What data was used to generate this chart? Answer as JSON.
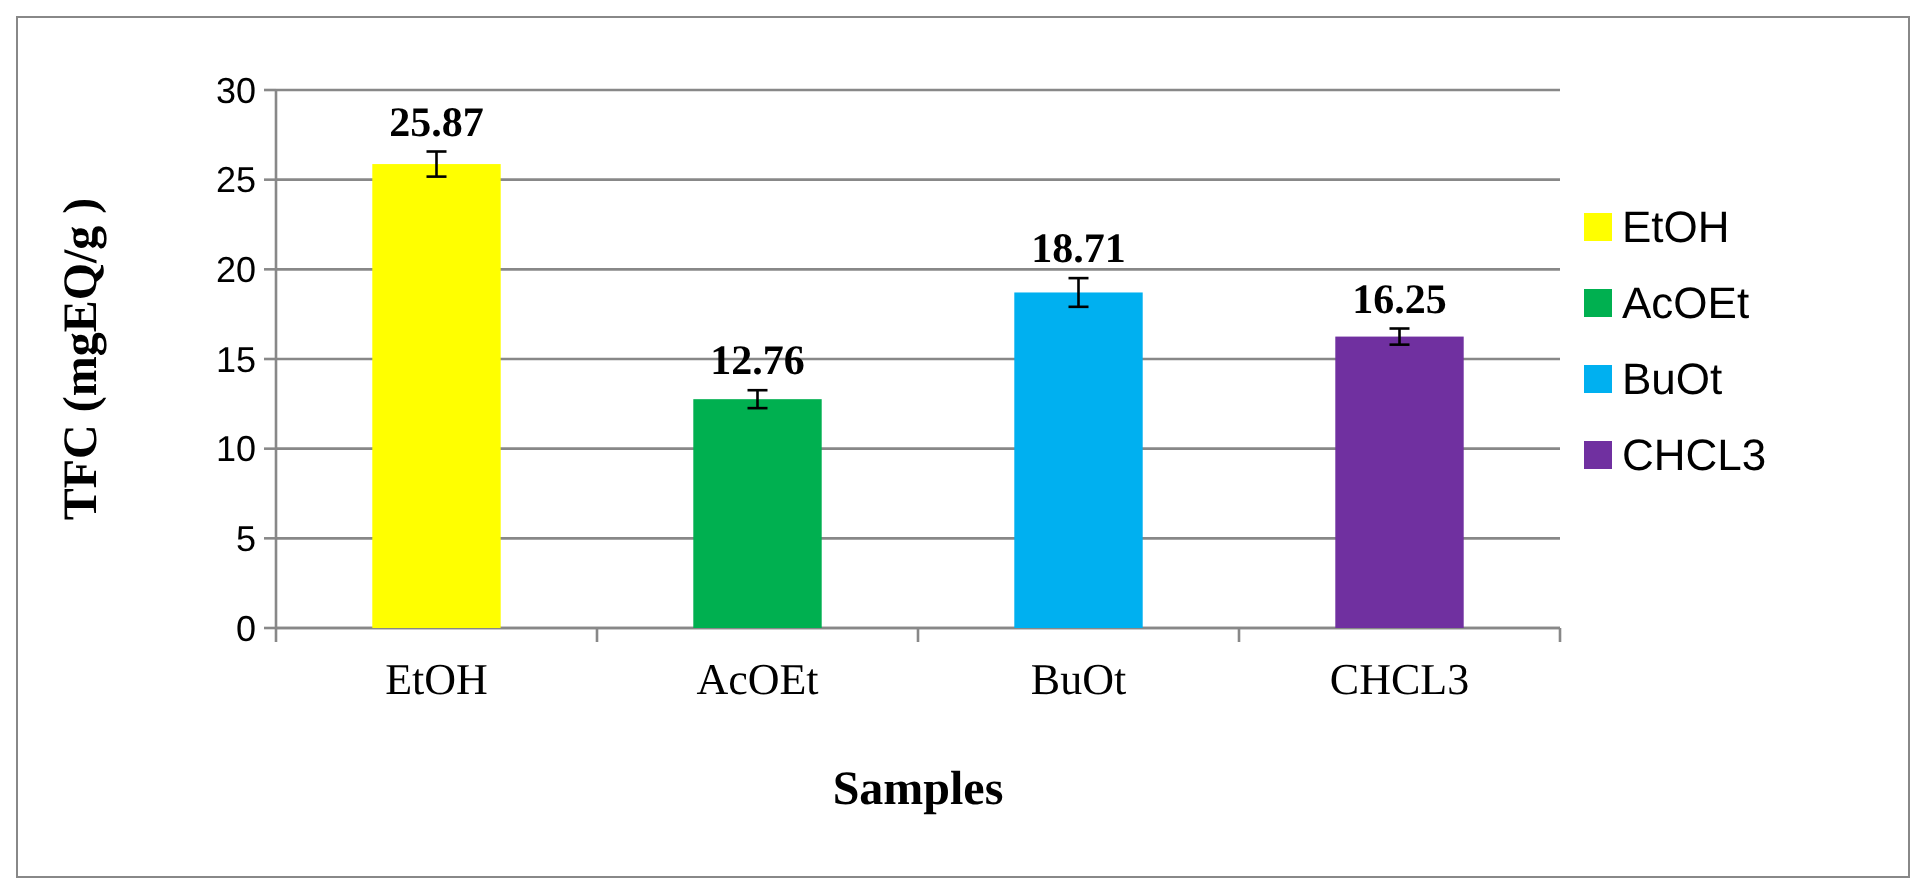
{
  "chart_data": {
    "type": "bar",
    "xlabel": "Samples",
    "ylabel": "TFC (mgEQ/g )",
    "categories": [
      "EtOH",
      "AcOEt",
      "BuOt",
      "CHCL3"
    ],
    "series": [
      {
        "name": "EtOH",
        "color": "#ffff00",
        "values": [
          25.87,
          null,
          null,
          null
        ],
        "errors": [
          0.7,
          null,
          null,
          null
        ]
      },
      {
        "name": "AcOEt",
        "color": "#00b050",
        "values": [
          null,
          12.76,
          null,
          null
        ],
        "errors": [
          null,
          0.5,
          null,
          null
        ]
      },
      {
        "name": "BuOt",
        "color": "#00b0f0",
        "values": [
          null,
          null,
          18.71,
          null
        ],
        "errors": [
          null,
          null,
          0.8,
          null
        ]
      },
      {
        "name": "CHCL3",
        "color": "#7030a0",
        "values": [
          null,
          null,
          null,
          16.25
        ],
        "errors": [
          null,
          null,
          null,
          0.45
        ]
      }
    ],
    "data_labels": true,
    "ylim": [
      0,
      30
    ],
    "yticks": [
      0,
      5,
      10,
      15,
      20,
      25,
      30
    ],
    "grid": "y",
    "legend": "right"
  }
}
